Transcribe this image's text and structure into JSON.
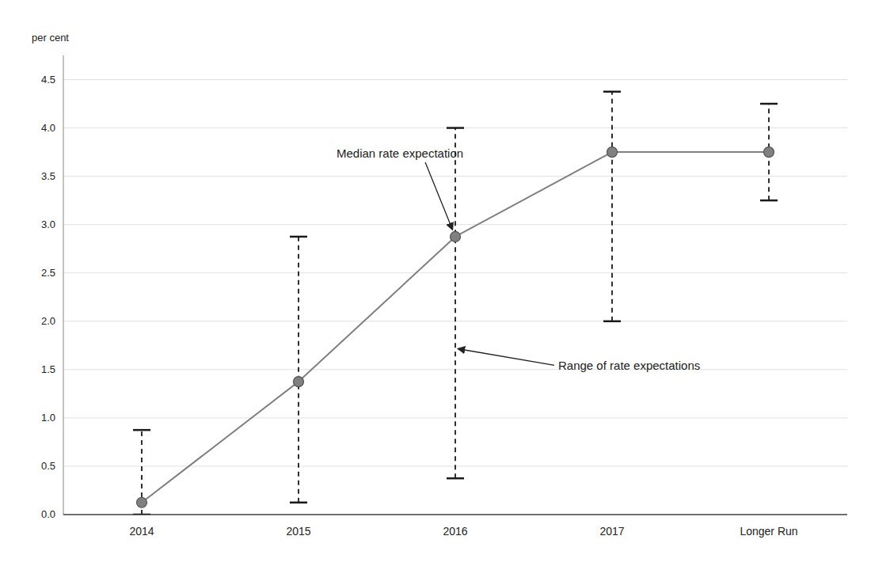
{
  "chart_data": {
    "type": "line",
    "ylabel": "per cent",
    "categories": [
      "2014",
      "2015",
      "2016",
      "2017",
      "Longer Run"
    ],
    "series": [
      {
        "color": "#808080",
        "marker": "circle",
        "values": [
          0.125,
          1.375,
          2.875,
          3.75,
          3.75
        ],
        "range_low": [
          0.0,
          0.125,
          0.375,
          2.0,
          3.25
        ],
        "range_high": [
          0.875,
          2.875,
          4.0,
          4.375,
          4.25
        ]
      }
    ],
    "ylim": [
      0.0,
      4.75
    ],
    "yticks": [
      {
        "value": 0.0,
        "label": "0.0"
      },
      0.5,
      {
        "value": 1.0,
        "label": "1.0"
      },
      1.5,
      {
        "value": 2.0,
        "label": "2.0"
      },
      2.5,
      {
        "value": 3.0,
        "label": "3.0"
      },
      3.5,
      {
        "value": 4.0,
        "label": "4.0"
      },
      4.5
    ],
    "grid": true,
    "annotations": [
      {
        "text": "Median rate expectation",
        "x": "2016",
        "y": 2.875
      },
      {
        "text": "Range of rate expectations",
        "x": "2016",
        "y": 1.72
      }
    ]
  }
}
